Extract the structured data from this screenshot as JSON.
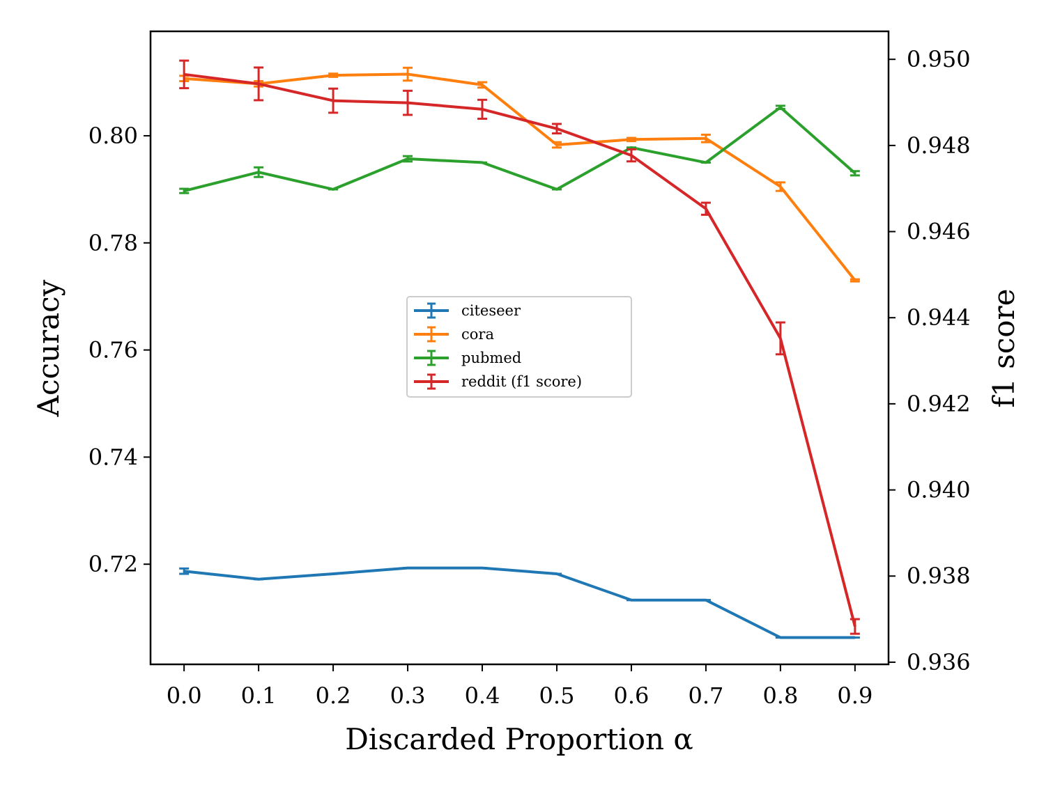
{
  "chart_data": {
    "type": "line",
    "xlabel": "Discarded Proportion α",
    "ylabel": "Accuracy",
    "y2label": "f1 score",
    "x": [
      0.0,
      0.1,
      0.2,
      0.3,
      0.4,
      0.5,
      0.6,
      0.7,
      0.8,
      0.9
    ],
    "x_tick_labels": [
      "0.0",
      "0.1",
      "0.2",
      "0.3",
      "0.4",
      "0.5",
      "0.6",
      "0.7",
      "0.8",
      "0.9"
    ],
    "xlim": [
      -0.045,
      0.945
    ],
    "ylim": [
      0.7013,
      0.8195
    ],
    "y_ticks": [
      0.72,
      0.74,
      0.76,
      0.78,
      0.8
    ],
    "y_tick_labels": [
      "0.72",
      "0.74",
      "0.76",
      "0.78",
      "0.80"
    ],
    "y2lim": [
      0.93595,
      0.95065
    ],
    "y2_ticks": [
      0.936,
      0.938,
      0.94,
      0.942,
      0.944,
      0.946,
      0.948,
      0.95
    ],
    "y2_tick_labels": [
      "0.936",
      "0.938",
      "0.940",
      "0.942",
      "0.944",
      "0.946",
      "0.948",
      "0.950"
    ],
    "legend_position": "center",
    "series": [
      {
        "name": "citeseer",
        "color": "#1f77b4",
        "axis": "left",
        "values": [
          0.7187,
          0.7172,
          0.7182,
          0.7193,
          0.7193,
          0.7182,
          0.7133,
          0.7133,
          0.7063,
          0.7063
        ],
        "errors": [
          0.0005,
          0,
          0,
          0,
          0,
          0,
          0,
          0,
          0,
          0
        ]
      },
      {
        "name": "cora",
        "color": "#ff7f0e",
        "axis": "left",
        "values": [
          0.8107,
          0.8097,
          0.8113,
          0.8115,
          0.8095,
          0.7983,
          0.7993,
          0.7995,
          0.7905,
          0.773
        ],
        "errors": [
          0.0005,
          0.0005,
          0.0003,
          0.0012,
          0.0005,
          0.0005,
          0.0003,
          0.0007,
          0.0008,
          0.0002
        ]
      },
      {
        "name": "pubmed",
        "color": "#2ca02c",
        "axis": "left",
        "values": [
          0.7897,
          0.7932,
          0.79,
          0.7957,
          0.795,
          0.79,
          0.7978,
          0.795,
          0.8053,
          0.793
        ],
        "errors": [
          0.0004,
          0.0009,
          0,
          0.0005,
          0,
          0,
          0,
          0,
          0.0003,
          0.0004
        ]
      },
      {
        "name": "reddit (f1 score)",
        "color": "#d62728",
        "axis": "right",
        "values": [
          0.94965,
          0.94943,
          0.94904,
          0.94899,
          0.94884,
          0.94839,
          0.94777,
          0.94653,
          0.94352,
          0.93683
        ],
        "errors": [
          0.00032,
          0.00038,
          0.00028,
          0.00028,
          0.00022,
          0.00011,
          0.00014,
          0.00014,
          0.00037,
          0.00017
        ]
      }
    ]
  }
}
